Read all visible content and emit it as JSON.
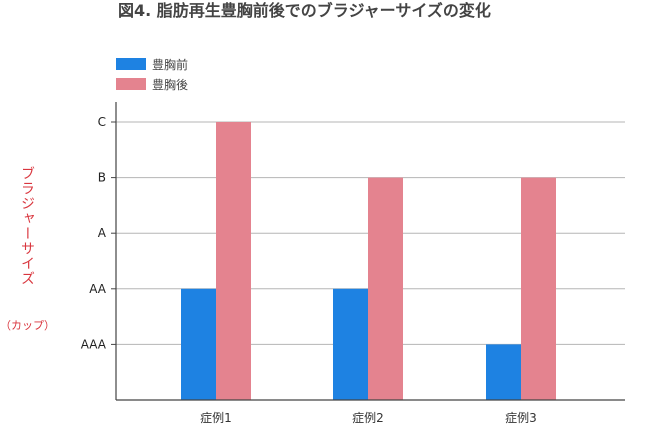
{
  "chart_data": {
    "type": "bar",
    "title": "図4. 脂肪再生豊胸前後でのブラジャーサイズの変化",
    "ylabel": "ブラジャーサイズ",
    "yunit": "（カップ）",
    "categories": [
      "症例1",
      "症例2",
      "症例3"
    ],
    "yticks": [
      "AAA",
      "AA",
      "A",
      "B",
      "C"
    ],
    "ylim": [
      0,
      5
    ],
    "grid": true,
    "legend_position": "top-left",
    "series": [
      {
        "name": "豊胸前",
        "color": "#1e82e2",
        "values": [
          2,
          2,
          1
        ]
      },
      {
        "name": "豊胸後",
        "color": "#e4838f",
        "values": [
          5,
          4,
          4
        ]
      }
    ]
  }
}
